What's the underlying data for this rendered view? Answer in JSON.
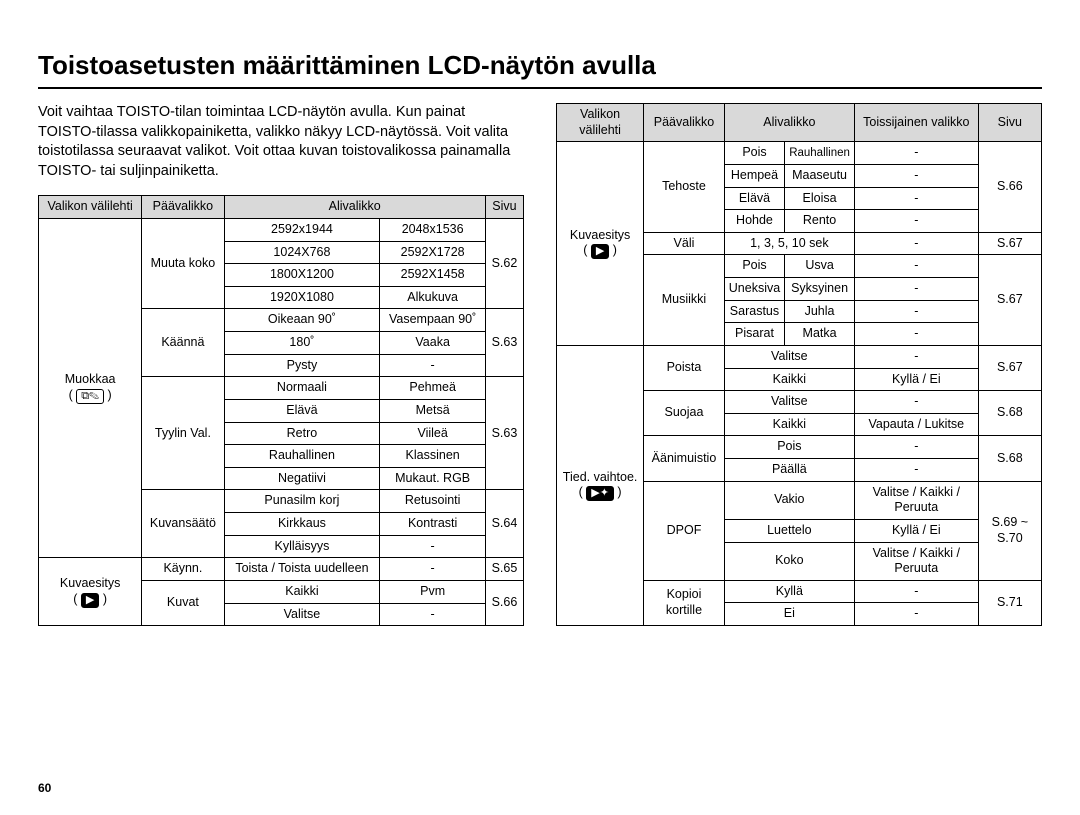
{
  "page": {
    "title": "Toistoasetusten määrittäminen LCD-näytön avulla",
    "intro": "Voit vaihtaa TOISTO-tilan toimintaa LCD-näytön avulla. Kun painat TOISTO-tilassa valikkopainiketta, valikko näkyy LCD-näytössä. Voit valita toistotilassa seuraavat valikot. Voit ottaa kuvan toistovalikossa painamalla TOISTO- tai suljinpainiketta.",
    "page_number": "60"
  },
  "headers_left": {
    "tab": "Valikon välilehti",
    "main": "Päävalikko",
    "sub": "Alivalikko",
    "page": "Sivu"
  },
  "headers_right": {
    "tab": "Valikon välilehti",
    "main": "Päävalikko",
    "sub": "Alivalikko",
    "secondary": "Toissijainen valikko",
    "page": "Sivu"
  },
  "left": {
    "muokkaa": {
      "tab": "Muokkaa",
      "icon": "⧉✎"
    },
    "muuta_koko": {
      "label": "Muuta koko",
      "page": "S.62",
      "r1a": "2592x1944",
      "r1b": "2048x1536",
      "r2a": "1024X768",
      "r2b": "2592X1728",
      "r3a": "1800X1200",
      "r3b": "2592X1458",
      "r4a": "1920X1080",
      "r4b": "Alkukuva"
    },
    "kaanna": {
      "label": "Käännä",
      "page": "S.63",
      "r1a": "Oikeaan 90˚",
      "r1b": "Vasempaan 90˚",
      "r2a": "180˚",
      "r2b": "Vaaka",
      "r3a": "Pysty",
      "r3b": "-"
    },
    "tyylin": {
      "label": "Tyylin Val.",
      "page": "S.63",
      "r1a": "Normaali",
      "r1b": "Pehmeä",
      "r2a": "Elävä",
      "r2b": "Metsä",
      "r3a": "Retro",
      "r3b": "Viileä",
      "r4a": "Rauhallinen",
      "r4b": "Klassinen",
      "r5a": "Negatiivi",
      "r5b": "Mukaut. RGB"
    },
    "kuvansaato": {
      "label": "Kuvansäätö",
      "page": "S.64",
      "r1a": "Punasilm korj",
      "r1b": "Retusointi",
      "r2a": "Kirkkaus",
      "r2b": "Kontrasti",
      "r3a": "Kylläisyys",
      "r3b": "-"
    },
    "kuvaesitys": {
      "tab": "Kuvaesitys",
      "icon": "▶"
    },
    "kaynn": {
      "label": "Käynn.",
      "page": "S.65",
      "sub": "Toista / Toista uudelleen",
      "dash": "-"
    },
    "kuvat": {
      "label": "Kuvat",
      "page": "S.66",
      "r1a": "Kaikki",
      "r1b": "Pvm",
      "r2a": "Valitse",
      "r2b": "-"
    }
  },
  "right": {
    "kuvaesitys": {
      "tab": "Kuvaesitys",
      "icon": "▶"
    },
    "tehoste": {
      "label": "Tehoste",
      "page": "S.66",
      "r1a": "Pois",
      "r1b": "Rauhallinen",
      "r1c": "-",
      "r2a": "Hempeä",
      "r2b": "Maaseutu",
      "r2c": "-",
      "r3a": "Elävä",
      "r3b": "Eloisa",
      "r3c": "-",
      "r4a": "Hohde",
      "r4b": "Rento",
      "r4c": "-"
    },
    "vali": {
      "label": "Väli",
      "sub": "1, 3, 5, 10 sek",
      "sec": "-",
      "page": "S.67"
    },
    "musiikki": {
      "label": "Musiikki",
      "page": "S.67",
      "r1a": "Pois",
      "r1b": "Usva",
      "r1c": "-",
      "r2a": "Uneksiva",
      "r2b": "Syksyinen",
      "r2c": "-",
      "r3a": "Sarastus",
      "r3b": "Juhla",
      "r3c": "-",
      "r4a": "Pisarat",
      "r4b": "Matka",
      "r4c": "-"
    },
    "tied": {
      "tab": "Tied. vaihtoe.",
      "icon": "▶✦"
    },
    "poista": {
      "label": "Poista",
      "page": "S.67",
      "r1a": "Valitse",
      "r1b": "-",
      "r2a": "Kaikki",
      "r2b": "Kyllä / Ei"
    },
    "suojaa": {
      "label": "Suojaa",
      "page": "S.68",
      "r1a": "Valitse",
      "r1b": "-",
      "r2a": "Kaikki",
      "r2b": "Vapauta / Lukitse"
    },
    "aanimuistio": {
      "label": "Äänimuistio",
      "page": "S.68",
      "r1a": "Pois",
      "r1b": "-",
      "r2a": "Päällä",
      "r2b": "-"
    },
    "dpof": {
      "label": "DPOF",
      "page": "S.69 ~ S.70",
      "r1a": "Vakio",
      "r1b": "Valitse / Kaikki / Peruuta",
      "r2a": "Luettelo",
      "r2b": "Kyllä / Ei",
      "r3a": "Koko",
      "r3b": "Valitse / Kaikki / Peruuta"
    },
    "kopioi": {
      "label": "Kopioi kortille",
      "page": "S.71",
      "r1a": "Kyllä",
      "r1b": "-",
      "r2a": "Ei",
      "r2b": "-"
    }
  }
}
